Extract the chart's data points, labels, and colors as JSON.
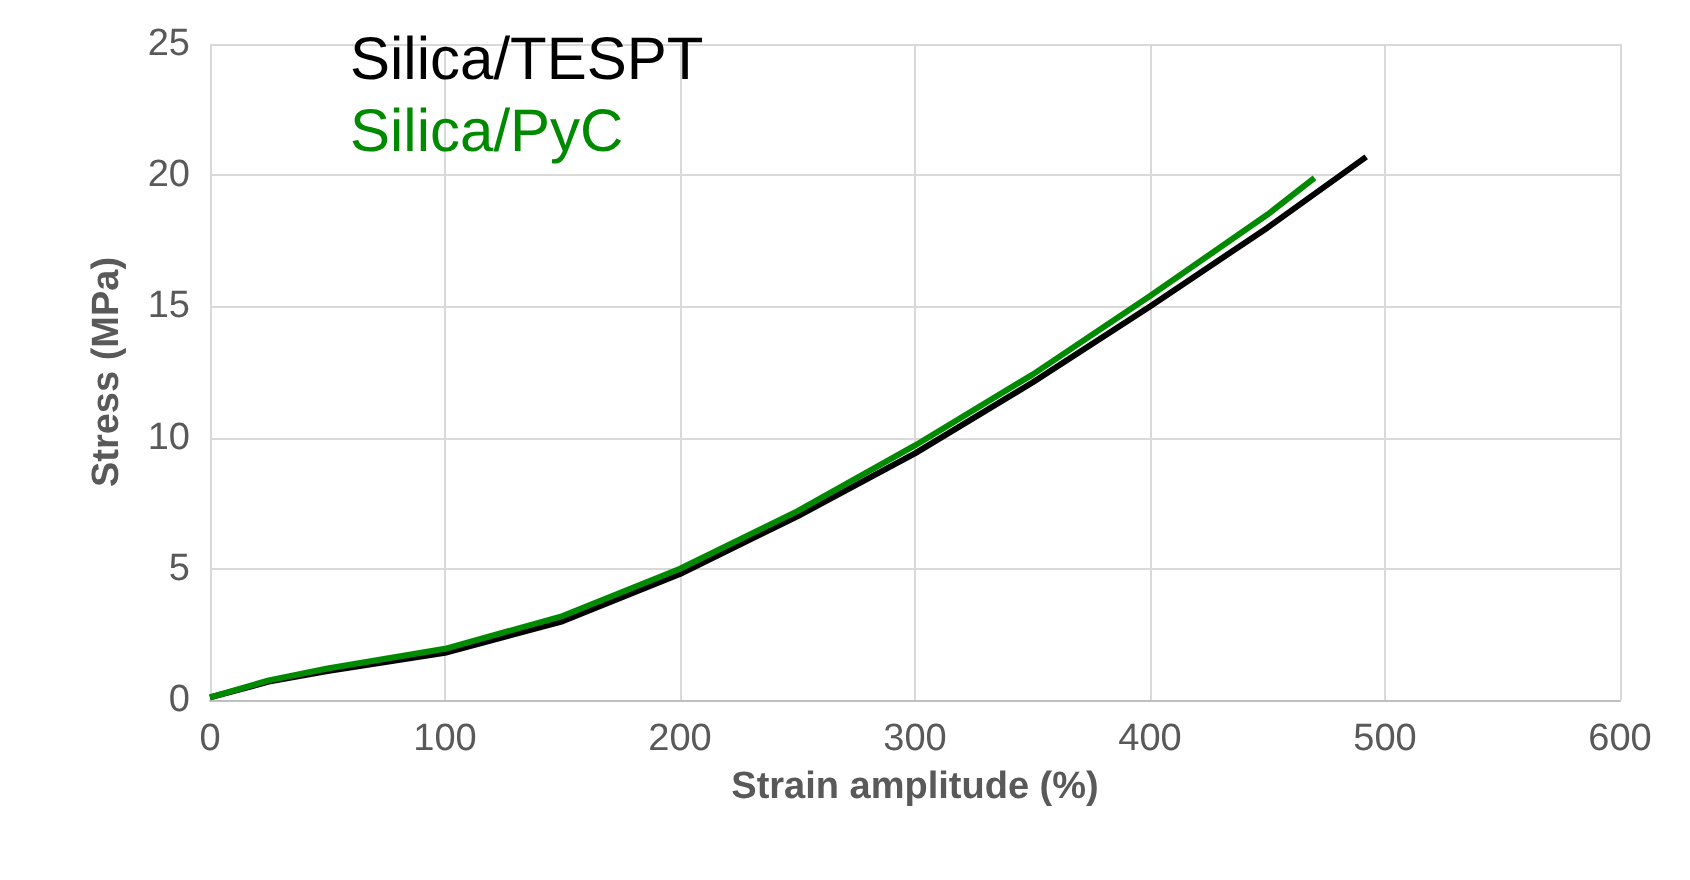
{
  "chart_data": {
    "type": "line",
    "xlabel": "Strain amplitude (%)",
    "ylabel": "Stress (MPa)",
    "xlim": [
      0,
      600
    ],
    "xticks": [
      0,
      100,
      200,
      300,
      400,
      500,
      600
    ],
    "ylim": [
      0,
      25
    ],
    "yticks": [
      0,
      5,
      10,
      15,
      20,
      25
    ],
    "grid": true,
    "legend": "top left",
    "marker": "none",
    "line_style": "solid",
    "series": [
      {
        "name": "Silica/TESPT",
        "color": "#000000",
        "x": [
          0,
          25,
          50,
          100,
          150,
          200,
          250,
          300,
          350,
          400,
          450,
          492
        ],
        "values": [
          0.1,
          0.7,
          1.1,
          1.8,
          3.0,
          4.8,
          7.0,
          9.4,
          12.1,
          15.0,
          18.0,
          20.7
        ]
      },
      {
        "name": "Silica/PyC",
        "color": "#008a00",
        "x": [
          0,
          25,
          50,
          100,
          150,
          200,
          250,
          300,
          350,
          400,
          450,
          470
        ],
        "values": [
          0.1,
          0.75,
          1.2,
          1.95,
          3.2,
          5.0,
          7.2,
          9.7,
          12.4,
          15.4,
          18.5,
          19.9
        ]
      }
    ]
  }
}
